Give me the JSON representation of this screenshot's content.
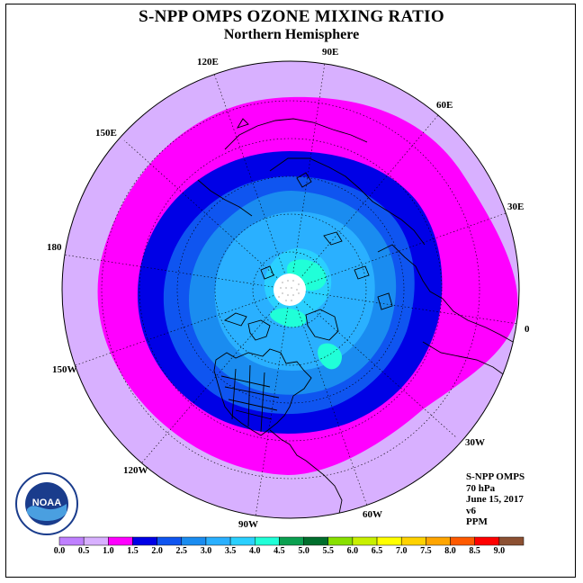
{
  "header": {
    "title": "S-NPP OMPS OZONE MIXING RATIO",
    "subtitle": "Northern Hemisphere"
  },
  "longitude_labels": [
    "90E",
    "60E",
    "30E",
    "0",
    "30W",
    "60W",
    "90W",
    "120W",
    "150W",
    "180",
    "150E",
    "120E"
  ],
  "info": {
    "instrument": "S-NPP OMPS",
    "level": "70 hPa",
    "date": "June 15, 2017",
    "version": "v6",
    "units": "PPM"
  },
  "legend": {
    "ticks": [
      "0.0",
      "0.5",
      "1.0",
      "1.5",
      "2.0",
      "2.5",
      "3.0",
      "3.5",
      "4.0",
      "4.5",
      "5.0",
      "5.5",
      "6.0",
      "6.5",
      "7.0",
      "7.5",
      "8.0",
      "8.5",
      "9.0"
    ],
    "colors": [
      "#bf80ff",
      "#d8b0ff",
      "#ff00ff",
      "#0000e6",
      "#0f55f0",
      "#1a8cf0",
      "#2ab0ff",
      "#2ad0ff",
      "#20ffd8",
      "#0aa050",
      "#006e2c",
      "#88e000",
      "#c8f000",
      "#ffff00",
      "#ffd200",
      "#ffa500",
      "#ff5a00",
      "#ff0000",
      "#8c5032"
    ]
  },
  "map_colors": {
    "outer": "#d8b0ff",
    "ring_magenta": "#ff00ff",
    "ring_blue": "#0000e6",
    "ring_mid": "#0f55f0",
    "ring_light": "#1a8cf0",
    "core": "#2ab0ff",
    "core_light": "#2ad0ff",
    "patch": "#20ffd8"
  },
  "logo": {
    "text": "NOAA"
  }
}
